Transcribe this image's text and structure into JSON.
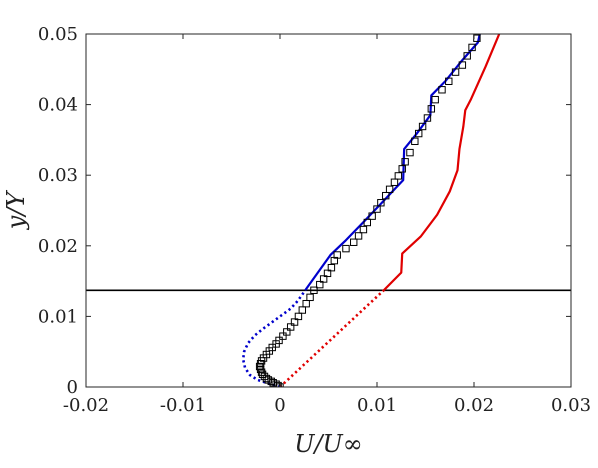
{
  "chart_data": {
    "type": "line",
    "title": "",
    "xlabel": "U/U∞",
    "ylabel": "y/Y",
    "xlim": [
      -0.02,
      0.03
    ],
    "ylim": [
      0,
      0.05
    ],
    "xticks": [
      {
        "value": -0.02,
        "label": "-0.02"
      },
      {
        "value": -0.01,
        "label": "-0.01"
      },
      {
        "value": 0,
        "label": "0"
      },
      {
        "value": 0.01,
        "label": "0.01"
      },
      {
        "value": 0.02,
        "label": "0.02"
      },
      {
        "value": 0.03,
        "label": "0.03"
      }
    ],
    "yticks": [
      {
        "value": 0,
        "label": "0"
      },
      {
        "value": 0.01,
        "label": "0.01"
      },
      {
        "value": 0.02,
        "label": "0.02"
      },
      {
        "value": 0.03,
        "label": "0.03"
      },
      {
        "value": 0.04,
        "label": "0.04"
      },
      {
        "value": 0.05,
        "label": "0.05"
      }
    ],
    "grid": false,
    "legend": "none",
    "reference_line": {
      "y": 0.0137,
      "color": "#000000"
    },
    "series": [
      {
        "style": "solid",
        "color": "#0000cc",
        "points": [
          [
            0.0026,
            0.0137
          ],
          [
            0.0052,
            0.0187
          ],
          [
            0.0068,
            0.0208
          ],
          [
            0.0087,
            0.0235
          ],
          [
            0.0105,
            0.0261
          ],
          [
            0.012,
            0.0283
          ],
          [
            0.0127,
            0.0293
          ],
          [
            0.0128,
            0.0337
          ],
          [
            0.0141,
            0.0359
          ],
          [
            0.0155,
            0.0385
          ],
          [
            0.0156,
            0.0413
          ],
          [
            0.0171,
            0.0434
          ],
          [
            0.0188,
            0.0463
          ],
          [
            0.0204,
            0.0488
          ],
          [
            0.0206,
            0.05
          ]
        ]
      },
      {
        "style": "dotted",
        "color": "#0000cc",
        "points": [
          [
            0,
            0
          ],
          [
            -0.0005,
            0.0002
          ],
          [
            -0.0012,
            0.0005
          ],
          [
            -0.0023,
            0.001
          ],
          [
            -0.0031,
            0.0017
          ],
          [
            -0.0036,
            0.0027
          ],
          [
            -0.0038,
            0.0039
          ],
          [
            -0.0037,
            0.005
          ],
          [
            -0.0033,
            0.0062
          ],
          [
            -0.0026,
            0.0073
          ],
          [
            -0.0018,
            0.0082
          ],
          [
            -0.0008,
            0.0092
          ],
          [
            0.0002,
            0.0102
          ],
          [
            0.0011,
            0.0111
          ],
          [
            0.0017,
            0.012
          ],
          [
            0.0022,
            0.0129
          ],
          [
            0.0026,
            0.0137
          ]
        ]
      },
      {
        "style": "solid",
        "color": "#e00000",
        "points": [
          [
            0.0107,
            0.0137
          ],
          [
            0.0125,
            0.0162
          ],
          [
            0.0126,
            0.0189
          ],
          [
            0.0145,
            0.0213
          ],
          [
            0.0162,
            0.0244
          ],
          [
            0.0175,
            0.0277
          ],
          [
            0.0183,
            0.0307
          ],
          [
            0.0185,
            0.0337
          ],
          [
            0.0189,
            0.0369
          ],
          [
            0.0191,
            0.0392
          ],
          [
            0.0197,
            0.0408
          ],
          [
            0.0212,
            0.0454
          ],
          [
            0.0226,
            0.05
          ]
        ]
      },
      {
        "style": "dotted",
        "color": "#e00000",
        "points": [
          [
            0,
            0
          ],
          [
            0.0107,
            0.0137
          ]
        ]
      },
      {
        "style": "markers",
        "marker": "square",
        "color": "#000000",
        "points": [
          [
            0,
            0
          ],
          [
            -0.0002,
            0.0002
          ],
          [
            -0.0004,
            0.0004
          ],
          [
            -0.0007,
            0.0006
          ],
          [
            -0.0009,
            0.0008
          ],
          [
            -0.0012,
            0.001
          ],
          [
            -0.0014,
            0.0012
          ],
          [
            -0.0016,
            0.0015
          ],
          [
            -0.0018,
            0.0018
          ],
          [
            -0.0019,
            0.0021
          ],
          [
            -0.002,
            0.0025
          ],
          [
            -0.0021,
            0.0029
          ],
          [
            -0.002,
            0.0033
          ],
          [
            -0.0019,
            0.0037
          ],
          [
            -0.0017,
            0.0041
          ],
          [
            -0.0014,
            0.0046
          ],
          [
            -0.0011,
            0.0051
          ],
          [
            -0.0008,
            0.0056
          ],
          [
            -0.0004,
            0.0061
          ],
          [
            -0.0001,
            0.0066
          ],
          [
            0.0003,
            0.0072
          ],
          [
            0.0007,
            0.0078
          ],
          [
            0.0011,
            0.0085
          ],
          [
            0.0015,
            0.0092
          ],
          [
            0.0019,
            0.01
          ],
          [
            0.0023,
            0.0109
          ],
          [
            0.0027,
            0.0118
          ],
          [
            0.0031,
            0.0127
          ],
          [
            0.0035,
            0.0137
          ],
          [
            0.0041,
            0.0145
          ],
          [
            0.0045,
            0.0153
          ],
          [
            0.0049,
            0.0161
          ],
          [
            0.0053,
            0.0169
          ],
          [
            0.0056,
            0.0179
          ],
          [
            0.0059,
            0.0187
          ],
          [
            0.0068,
            0.0196
          ],
          [
            0.0076,
            0.0205
          ],
          [
            0.0081,
            0.0214
          ],
          [
            0.0086,
            0.0223
          ],
          [
            0.009,
            0.0233
          ],
          [
            0.0095,
            0.0242
          ],
          [
            0.01,
            0.0252
          ],
          [
            0.0104,
            0.0261
          ],
          [
            0.0109,
            0.0271
          ],
          [
            0.0113,
            0.028
          ],
          [
            0.0118,
            0.029
          ],
          [
            0.0122,
            0.0299
          ],
          [
            0.0126,
            0.0309
          ],
          [
            0.0129,
            0.0319
          ],
          [
            0.0134,
            0.0332
          ],
          [
            0.0139,
            0.0348
          ],
          [
            0.0143,
            0.0359
          ],
          [
            0.0147,
            0.0369
          ],
          [
            0.0152,
            0.0381
          ],
          [
            0.0156,
            0.0394
          ],
          [
            0.016,
            0.0407
          ],
          [
            0.0167,
            0.0421
          ],
          [
            0.0174,
            0.0433
          ],
          [
            0.0181,
            0.0446
          ],
          [
            0.0188,
            0.0456
          ],
          [
            0.0193,
            0.0469
          ],
          [
            0.0198,
            0.0481
          ],
          [
            0.0203,
            0.0494
          ]
        ]
      }
    ]
  }
}
